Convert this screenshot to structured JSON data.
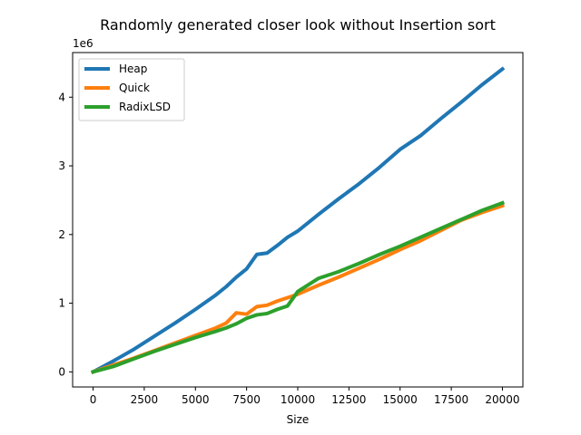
{
  "chart_data": {
    "type": "line",
    "title": "Randomly generated closer look without Insertion sort",
    "xlabel": "Size",
    "ylabel": "",
    "y_offset_label": "1e6",
    "y_scale": 1000000,
    "xlim": [
      -1000,
      21000
    ],
    "ylim": [
      -220000,
      4650000
    ],
    "xticks": [
      0,
      2500,
      5000,
      7500,
      10000,
      12500,
      15000,
      17500,
      20000
    ],
    "xtick_labels": [
      "0",
      "2500",
      "5000",
      "7500",
      "10000",
      "12500",
      "15000",
      "17500",
      "20000"
    ],
    "yticks": [
      0,
      1000000,
      2000000,
      3000000,
      4000000
    ],
    "ytick_labels": [
      "0",
      "1",
      "2",
      "3",
      "4"
    ],
    "grid": false,
    "legend_position": "top-left",
    "series": [
      {
        "name": "Heap",
        "color": "#1f77b4",
        "x": [
          0,
          1000,
          2000,
          3000,
          4000,
          5000,
          6000,
          6500,
          7000,
          7500,
          8000,
          8500,
          9000,
          9500,
          10000,
          11000,
          12000,
          13000,
          14000,
          15000,
          16000,
          17000,
          18000,
          19000,
          20000
        ],
        "y": [
          0,
          160000,
          330000,
          520000,
          710000,
          910000,
          1120000,
          1240000,
          1380000,
          1500000,
          1710000,
          1730000,
          1840000,
          1960000,
          2050000,
          2290000,
          2520000,
          2740000,
          2980000,
          3240000,
          3440000,
          3690000,
          3930000,
          4180000,
          4410000
        ]
      },
      {
        "name": "Quick",
        "color": "#ff7f0e",
        "x": [
          0,
          1000,
          2000,
          3000,
          4000,
          5000,
          6000,
          6500,
          7000,
          7500,
          8000,
          8500,
          9000,
          9500,
          10000,
          11000,
          12000,
          13000,
          14000,
          15000,
          16000,
          17000,
          18000,
          19000,
          20000
        ],
        "y": [
          0,
          100000,
          200000,
          310000,
          420000,
          530000,
          640000,
          710000,
          860000,
          840000,
          950000,
          970000,
          1030000,
          1080000,
          1130000,
          1260000,
          1380000,
          1510000,
          1640000,
          1780000,
          1910000,
          2060000,
          2210000,
          2320000,
          2420000
        ]
      },
      {
        "name": "RadixLSD",
        "color": "#2ca02c",
        "x": [
          0,
          1000,
          2000,
          3000,
          4000,
          5000,
          6000,
          6500,
          7000,
          7500,
          8000,
          8500,
          9000,
          9500,
          10000,
          11000,
          12000,
          13000,
          14000,
          15000,
          16000,
          17000,
          18000,
          19000,
          20000
        ],
        "y": [
          0,
          80000,
          190000,
          300000,
          400000,
          500000,
          590000,
          640000,
          700000,
          780000,
          830000,
          850000,
          910000,
          960000,
          1170000,
          1360000,
          1460000,
          1580000,
          1710000,
          1830000,
          1960000,
          2090000,
          2220000,
          2350000,
          2460000
        ]
      }
    ]
  }
}
